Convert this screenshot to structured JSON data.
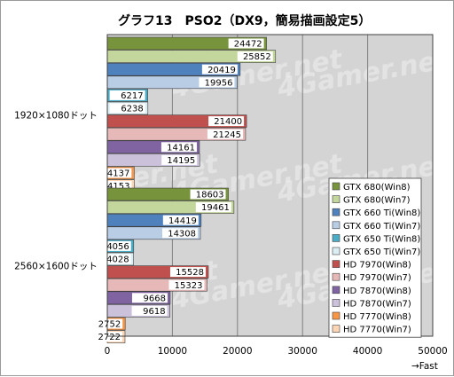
{
  "chart_data": {
    "type": "bar",
    "orientation": "horizontal",
    "title": "グラフ13　PSO2（DX9，簡易描画設定5）",
    "watermark": "4Gamer.net",
    "categories": [
      "1920×1080ドット",
      "2560×1600ドット"
    ],
    "xlim": [
      0,
      50000
    ],
    "xticks": [
      "0",
      "10000",
      "20000",
      "30000",
      "40000",
      "50000"
    ],
    "xlabel_note": "→Fast",
    "grid": "vertical",
    "legend_position": "right",
    "series": [
      {
        "name": "GTX 680(Win8)",
        "color": "#77933c",
        "values": [
          24472,
          18603
        ]
      },
      {
        "name": "GTX 680(Win7)",
        "color": "#c3d69b",
        "values": [
          25852,
          19461
        ]
      },
      {
        "name": "GTX 660 Ti(Win8)",
        "color": "#4f81bd",
        "values": [
          20419,
          14419
        ]
      },
      {
        "name": "GTX 660 Ti(Win7)",
        "color": "#b9cde5",
        "values": [
          19956,
          14308
        ]
      },
      {
        "name": "GTX 650 Ti(Win8)",
        "color": "#4bacc6",
        "values": [
          6217,
          4056
        ]
      },
      {
        "name": "GTX 650 Ti(Win7)",
        "color": "#dbeef4",
        "values": [
          6238,
          4028
        ]
      },
      {
        "name": "HD 7970(Win8)",
        "color": "#c0504d",
        "values": [
          21400,
          15528
        ]
      },
      {
        "name": "HD 7970(Win7)",
        "color": "#e6b9b8",
        "values": [
          21245,
          15323
        ]
      },
      {
        "name": "HD 7870(Win8)",
        "color": "#8064a2",
        "values": [
          14161,
          9668
        ]
      },
      {
        "name": "HD 7870(Win7)",
        "color": "#ccc1da",
        "values": [
          14195,
          9618
        ]
      },
      {
        "name": "HD 7770(Win8)",
        "color": "#f79646",
        "values": [
          4137,
          2752
        ]
      },
      {
        "name": "HD 7770(Win7)",
        "color": "#fcd5b5",
        "values": [
          4153,
          2722
        ]
      }
    ]
  }
}
